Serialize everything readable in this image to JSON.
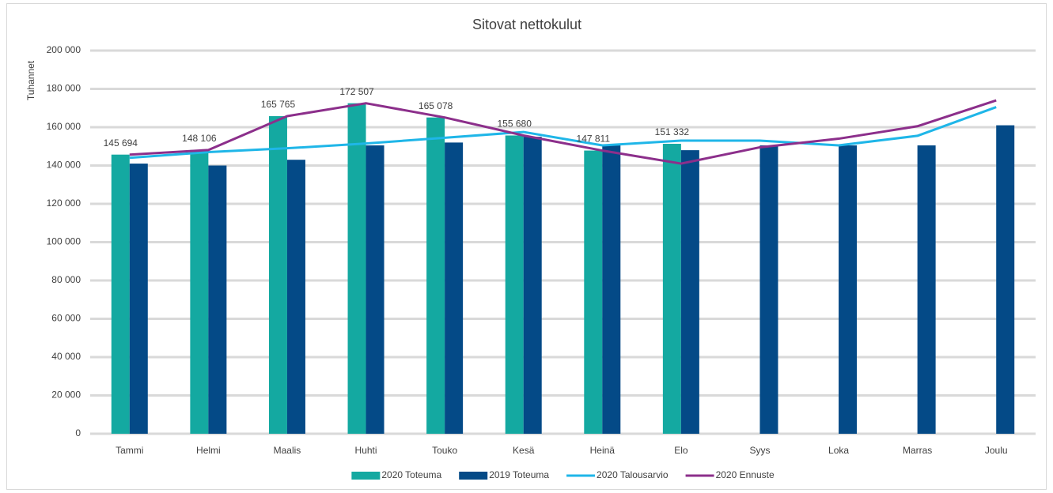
{
  "chart_data": {
    "type": "bar",
    "title": "Sitovat nettokulut",
    "y_label": "Tuhannet",
    "categories": [
      "Tammi",
      "Helmi",
      "Maalis",
      "Huhti",
      "Touko",
      "Kesä",
      "Heinä",
      "Elo",
      "Syys",
      "Loka",
      "Marras",
      "Joulu"
    ],
    "series": [
      {
        "name": "2020 Toteuma",
        "type": "bar",
        "color": "#14a9a1",
        "values": [
          145694,
          148106,
          165765,
          172507,
          165078,
          155680,
          147811,
          151332,
          null,
          null,
          null,
          null
        ],
        "value_labels": [
          "145 694",
          "148 106",
          "165 765",
          "172 507",
          "165 078",
          "155 680",
          "147 811",
          "151 332",
          null,
          null,
          null,
          null
        ]
      },
      {
        "name": "2019 Toteuma",
        "type": "bar",
        "color": "#044a87",
        "values": [
          141000,
          140000,
          143000,
          150500,
          152000,
          155000,
          150500,
          148000,
          150500,
          150500,
          150500,
          161000
        ]
      },
      {
        "name": "2020 Talousarvio",
        "type": "line",
        "color": "#1fb6e8",
        "values": [
          144000,
          147000,
          149000,
          151500,
          154500,
          157500,
          150500,
          153000,
          153000,
          150500,
          155500,
          170500
        ]
      },
      {
        "name": "2020 Ennuste",
        "type": "line",
        "color": "#8c2f8b",
        "values": [
          145694,
          148106,
          165765,
          172507,
          165078,
          155680,
          147811,
          141000,
          149500,
          154000,
          160500,
          174000
        ]
      }
    ],
    "ylim": [
      0,
      200000
    ],
    "yticks": [
      0,
      {
        "value": 20000,
        "label": "20 000"
      },
      {
        "value": 40000,
        "label": "40 000"
      },
      {
        "value": 60000,
        "label": "60 000"
      },
      {
        "value": 80000,
        "label": "80 000"
      },
      {
        "value": 100000,
        "label": "100 000"
      },
      {
        "value": 120000,
        "label": "120 000"
      },
      {
        "value": 140000,
        "label": "140 000"
      },
      {
        "value": 160000,
        "label": "160 000"
      },
      {
        "value": 180000,
        "label": "180 000"
      },
      {
        "value": 200000,
        "label": "200 000"
      }
    ],
    "grid": true,
    "legend": "bottom"
  }
}
